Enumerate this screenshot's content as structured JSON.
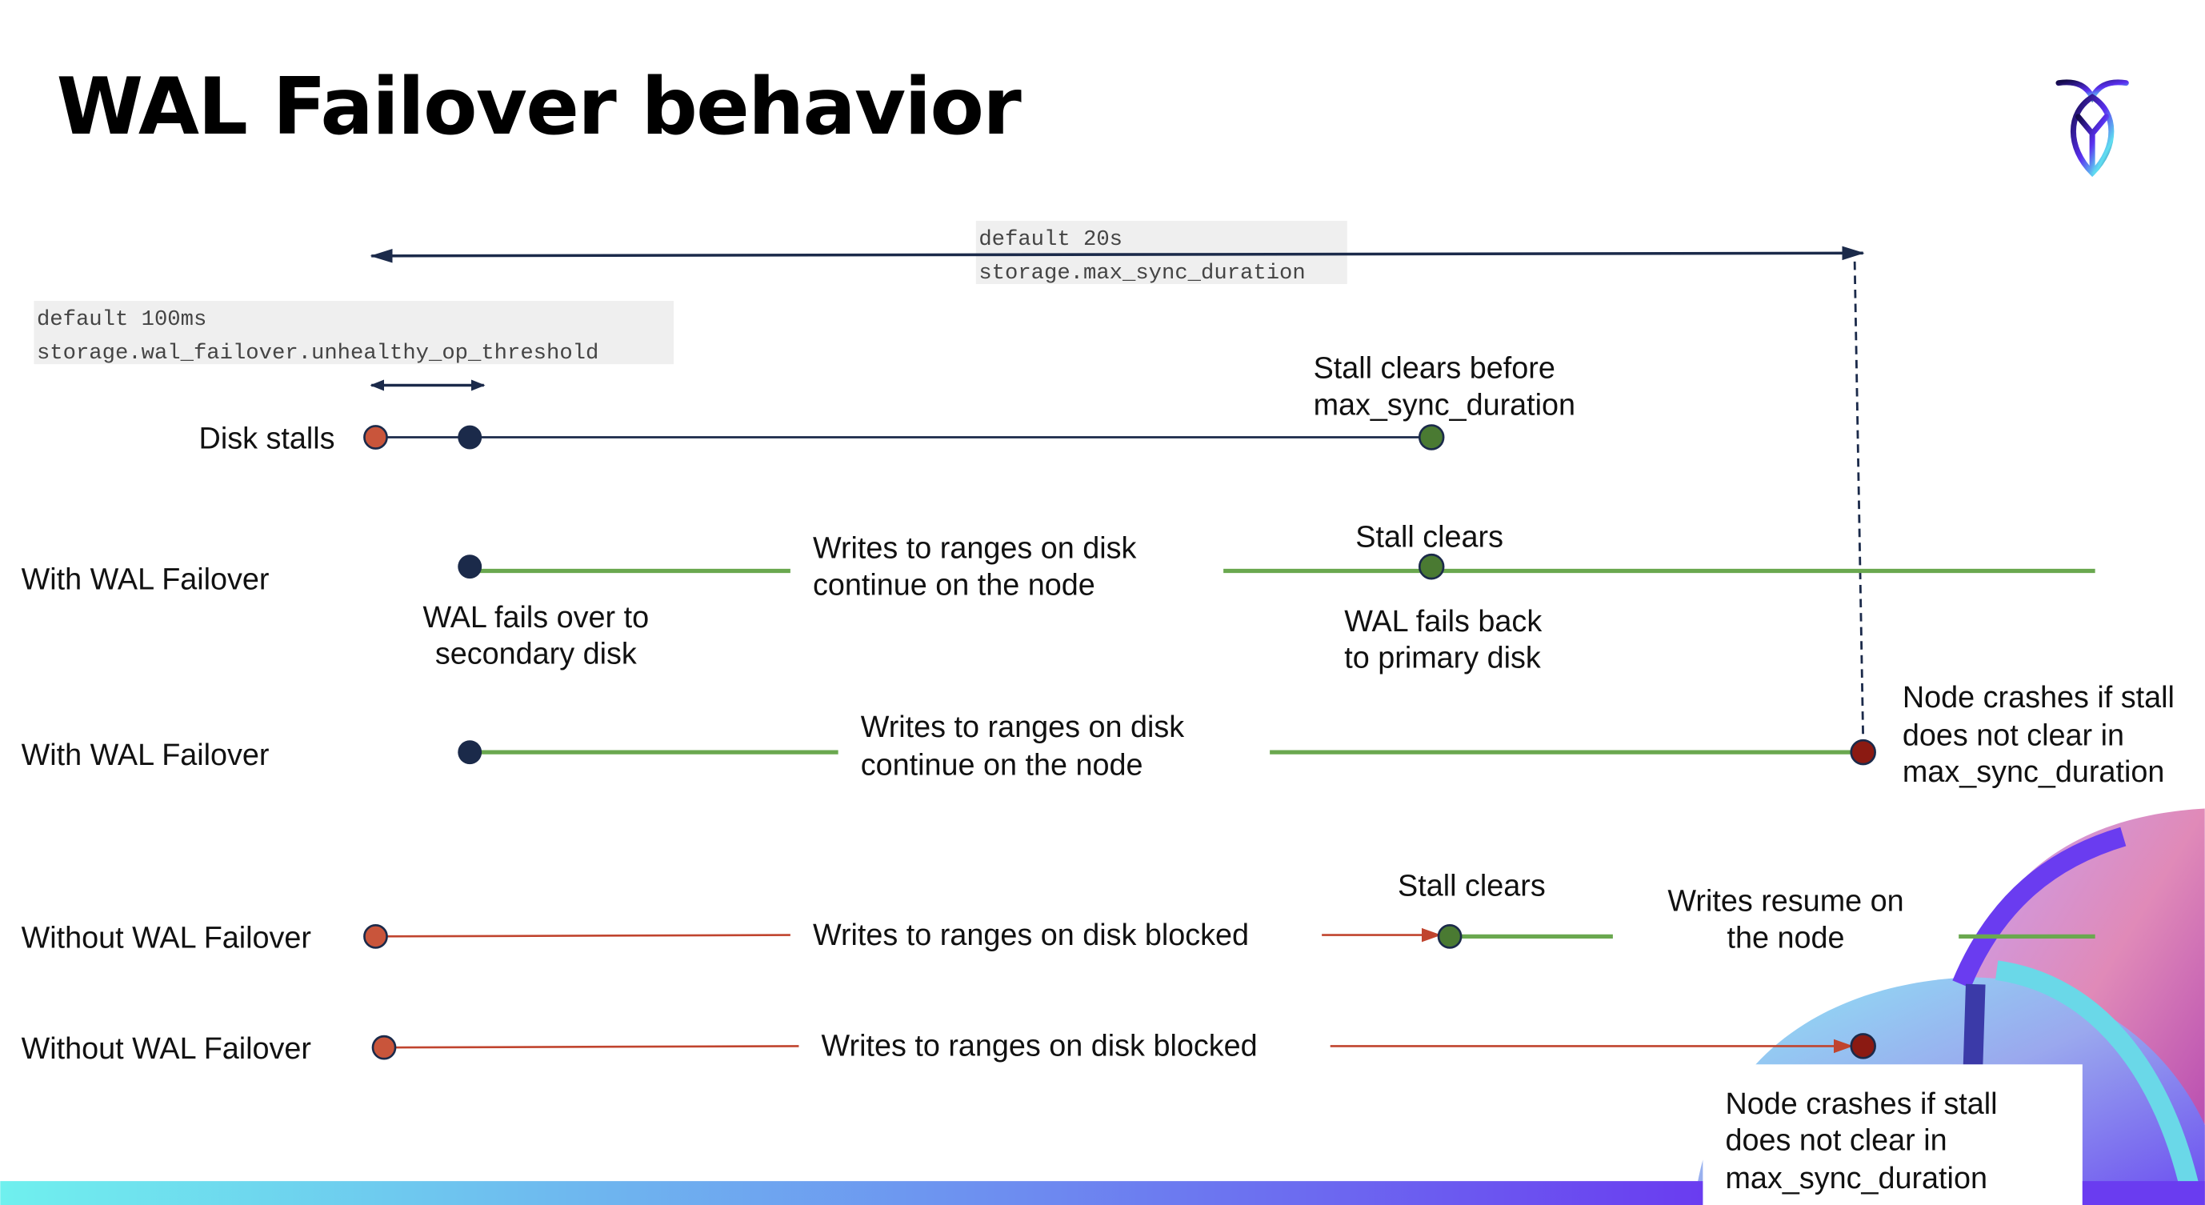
{
  "title": "WAL Failover behavior",
  "colors": {
    "navy": "#1b2a4a",
    "green": "#6aa84f",
    "green_dot": "#4a7a32",
    "red_dot": "#c9553b",
    "crash_dot": "#8b1a12",
    "red_line": "#c0442e"
  },
  "logo": "cockroach-logo-icon",
  "settings": {
    "max_sync": {
      "default": "default 20s",
      "name": "storage.max_sync_duration"
    },
    "threshold": {
      "default": "default 100ms",
      "name": "storage.wal_failover.unhealthy_op_threshold"
    }
  },
  "rows": {
    "disk_stalls": {
      "label": "Disk stalls",
      "note": [
        "Stall clears before",
        "max_sync_duration"
      ]
    },
    "with1": {
      "label": "With WAL Failover",
      "mid": [
        "Writes to ranges on disk",
        "continue on the node"
      ],
      "stall_clears": "Stall clears",
      "failover": [
        "WAL fails over to",
        "secondary disk"
      ],
      "failback": [
        "WAL fails  back",
        "to primary disk"
      ]
    },
    "with2": {
      "label": "With WAL Failover",
      "mid": [
        "Writes to ranges on disk",
        "continue on the node"
      ],
      "crash": [
        "Node crashes if stall",
        "does not clear in",
        "max_sync_duration"
      ]
    },
    "without1": {
      "label": "Without WAL Failover",
      "mid": "Writes to ranges on disk  blocked",
      "stall_clears": "Stall clears",
      "resume": [
        "Writes resume on",
        "the node"
      ]
    },
    "without2": {
      "label": "Without WAL Failover",
      "mid": "Writes to ranges on disk  blocked",
      "crash": [
        "Node crashes if stall",
        "does not clear in",
        "max_sync_duration"
      ]
    }
  }
}
